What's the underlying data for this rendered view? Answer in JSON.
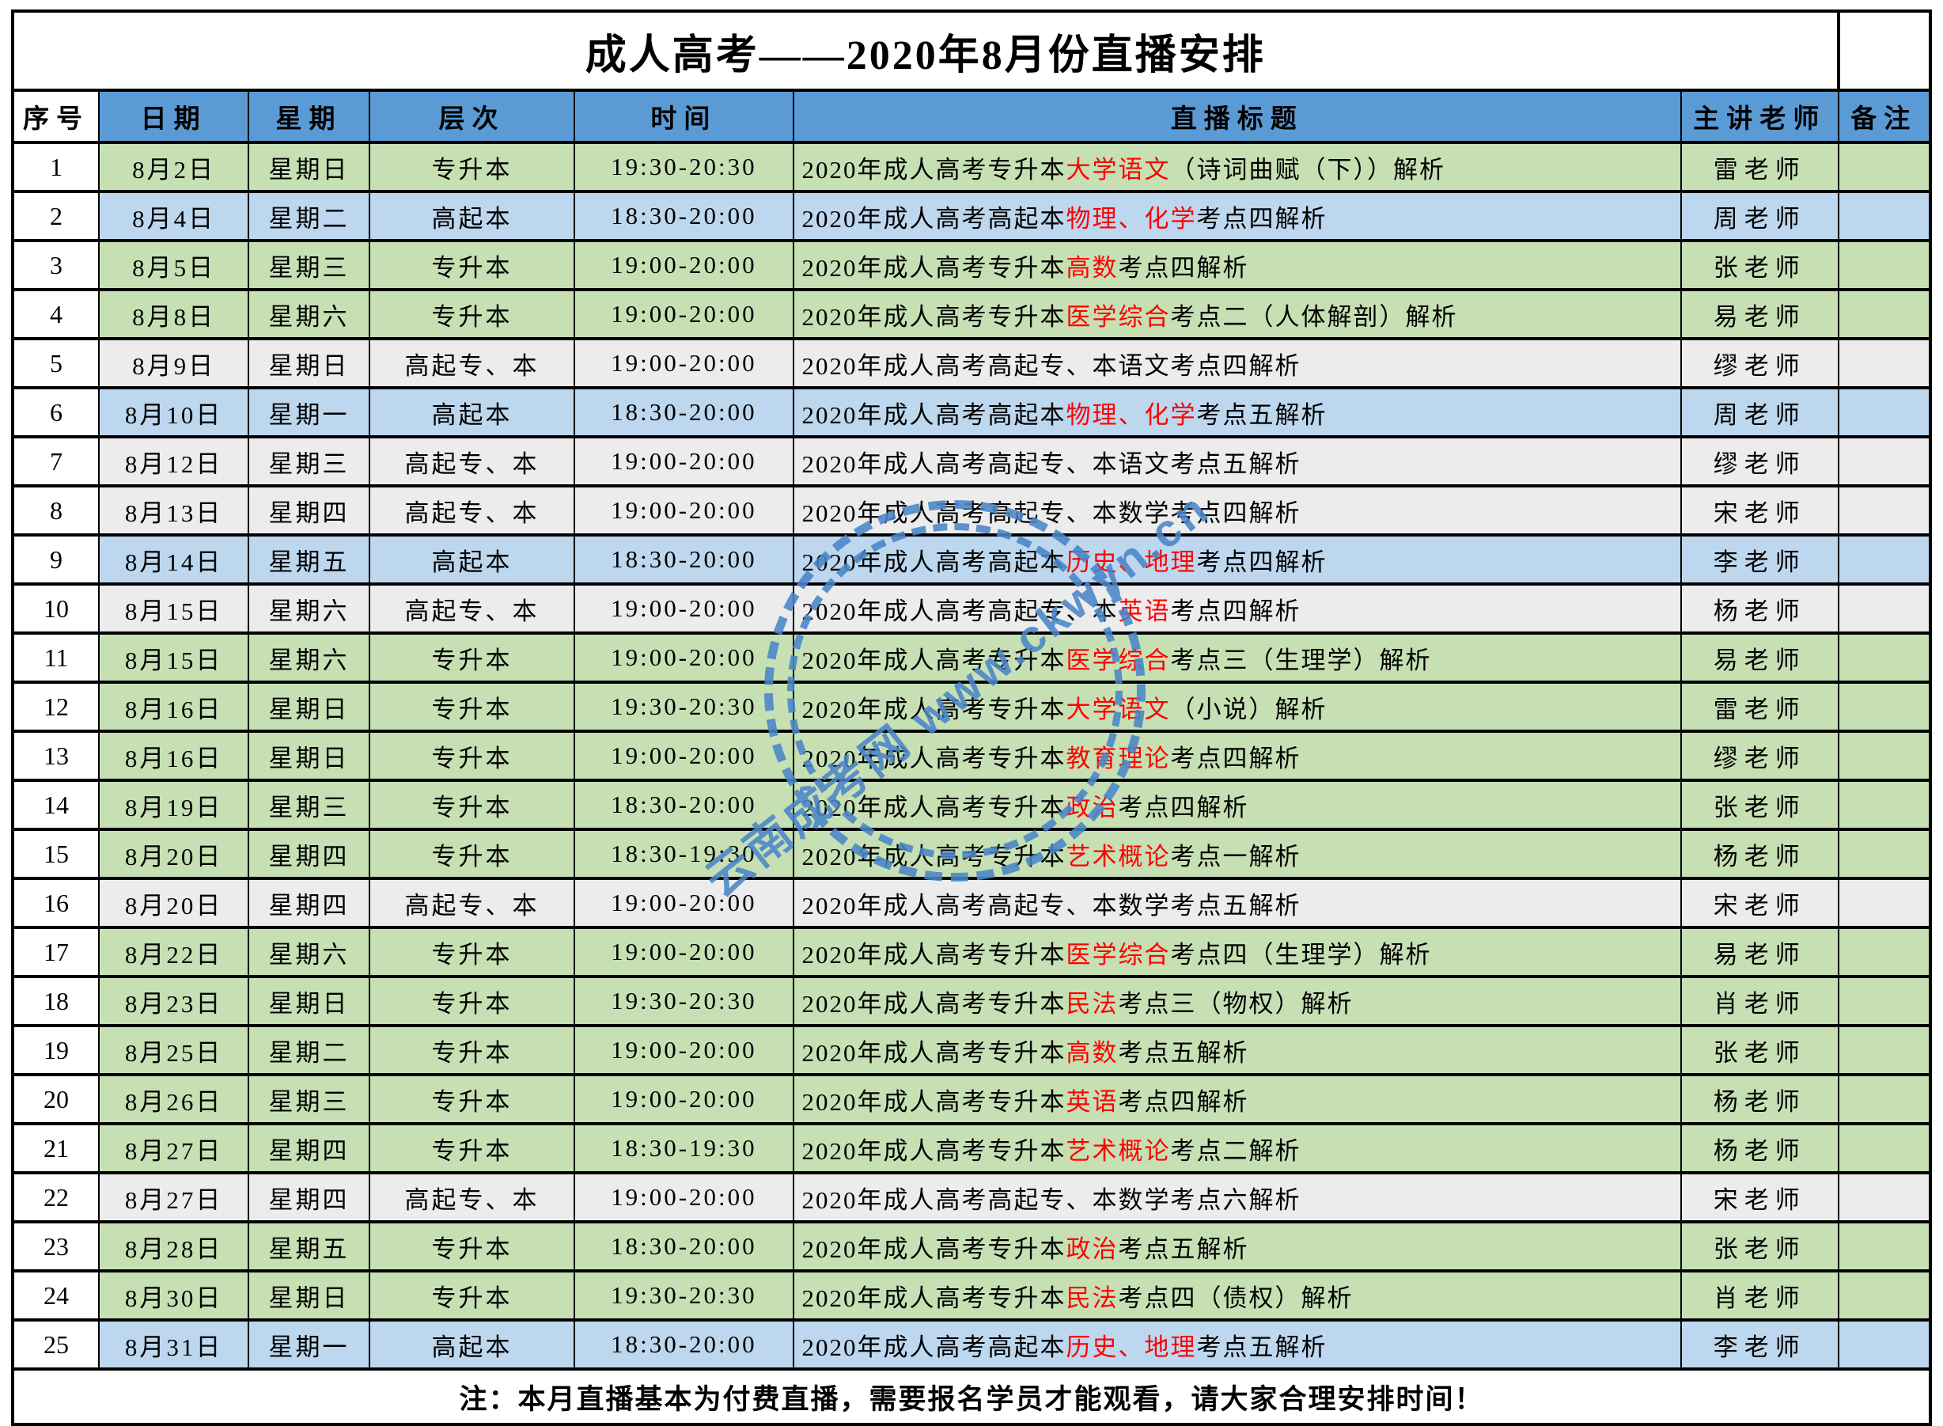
{
  "title": "成人高考——2020年8月份直播安排",
  "columns": [
    "序号",
    "日期",
    "星期",
    "层次",
    "时间",
    "直播标题",
    "主讲老师",
    "备注"
  ],
  "footer_note": "注：本月直播基本为付费直播，需要报名学员才能观看，请大家合理安排时间！",
  "watermark": {
    "text": "云南成考网 www.ckwyn.cn",
    "color": "#4a86c8"
  },
  "colors": {
    "header_bg": "#5b9bd5",
    "row_green": "#c6e0b4",
    "row_blue": "#bdd7ee",
    "row_gray": "#ececec",
    "highlight_red": "#ff0000",
    "border": "#000000"
  },
  "rows": [
    {
      "no": "1",
      "date": "8月2日",
      "weekday": "星期日",
      "level": "专升本",
      "time": "19:30-20:30",
      "bg": "green",
      "teacher": "雷老师",
      "remark": "",
      "title_parts": [
        {
          "text": "2020年成人高考专升本",
          "red": false
        },
        {
          "text": "大学语文",
          "red": true
        },
        {
          "text": "（诗词曲赋（下））解析",
          "red": false
        }
      ]
    },
    {
      "no": "2",
      "date": "8月4日",
      "weekday": "星期二",
      "level": "高起本",
      "time": "18:30-20:00",
      "bg": "blue",
      "teacher": "周老师",
      "remark": "",
      "title_parts": [
        {
          "text": "2020年成人高考高起本",
          "red": false
        },
        {
          "text": "物理、化学",
          "red": true
        },
        {
          "text": "考点四解析",
          "red": false
        }
      ]
    },
    {
      "no": "3",
      "date": "8月5日",
      "weekday": "星期三",
      "level": "专升本",
      "time": "19:00-20:00",
      "bg": "green",
      "teacher": "张老师",
      "remark": "",
      "title_parts": [
        {
          "text": "2020年成人高考专升本",
          "red": false
        },
        {
          "text": "高数",
          "red": true
        },
        {
          "text": "考点四解析",
          "red": false
        }
      ]
    },
    {
      "no": "4",
      "date": "8月8日",
      "weekday": "星期六",
      "level": "专升本",
      "time": "19:00-20:00",
      "bg": "green",
      "teacher": "易老师",
      "remark": "",
      "title_parts": [
        {
          "text": "2020年成人高考专升本",
          "red": false
        },
        {
          "text": "医学综合",
          "red": true
        },
        {
          "text": "考点二（人体解剖）解析",
          "red": false
        }
      ]
    },
    {
      "no": "5",
      "date": "8月9日",
      "weekday": "星期日",
      "level": "高起专、本",
      "time": "19:00-20:00",
      "bg": "gray",
      "teacher": "缪老师",
      "remark": "",
      "title_parts": [
        {
          "text": "2020年成人高考高起专、本语文考点四解析",
          "red": false
        }
      ]
    },
    {
      "no": "6",
      "date": "8月10日",
      "weekday": "星期一",
      "level": "高起本",
      "time": "18:30-20:00",
      "bg": "blue",
      "teacher": "周老师",
      "remark": "",
      "title_parts": [
        {
          "text": "2020年成人高考高起本",
          "red": false
        },
        {
          "text": "物理、化学",
          "red": true
        },
        {
          "text": "考点五解析",
          "red": false
        }
      ]
    },
    {
      "no": "7",
      "date": "8月12日",
      "weekday": "星期三",
      "level": "高起专、本",
      "time": "19:00-20:00",
      "bg": "gray",
      "teacher": "缪老师",
      "remark": "",
      "title_parts": [
        {
          "text": "2020年成人高考高起专、本语文考点五解析",
          "red": false
        }
      ]
    },
    {
      "no": "8",
      "date": "8月13日",
      "weekday": "星期四",
      "level": "高起专、本",
      "time": "19:00-20:00",
      "bg": "gray",
      "teacher": "宋老师",
      "remark": "",
      "title_parts": [
        {
          "text": "2020年成人高考高起专、本数学考点四解析",
          "red": false
        }
      ]
    },
    {
      "no": "9",
      "date": "8月14日",
      "weekday": "星期五",
      "level": "高起本",
      "time": "18:30-20:00",
      "bg": "blue",
      "teacher": "李老师",
      "remark": "",
      "title_parts": [
        {
          "text": "2020年成人高考高起本",
          "red": false
        },
        {
          "text": "历史、地理",
          "red": true
        },
        {
          "text": "考点四解析",
          "red": false
        }
      ]
    },
    {
      "no": "10",
      "date": "8月15日",
      "weekday": "星期六",
      "level": "高起专、本",
      "time": "19:00-20:00",
      "bg": "gray",
      "teacher": "杨老师",
      "remark": "",
      "title_parts": [
        {
          "text": "2020年成人高考高起专、本",
          "red": false
        },
        {
          "text": "英语",
          "red": true
        },
        {
          "text": "考点四解析",
          "red": false
        }
      ]
    },
    {
      "no": "11",
      "date": "8月15日",
      "weekday": "星期六",
      "level": "专升本",
      "time": "19:00-20:00",
      "bg": "green",
      "teacher": "易老师",
      "remark": "",
      "title_parts": [
        {
          "text": "2020年成人高考专升本",
          "red": false
        },
        {
          "text": "医学综合",
          "red": true
        },
        {
          "text": "考点三（生理学）解析",
          "red": false
        }
      ]
    },
    {
      "no": "12",
      "date": "8月16日",
      "weekday": "星期日",
      "level": "专升本",
      "time": "19:30-20:30",
      "bg": "green",
      "teacher": "雷老师",
      "remark": "",
      "title_parts": [
        {
          "text": "2020年成人高考专升本",
          "red": false
        },
        {
          "text": "大学语文",
          "red": true
        },
        {
          "text": "（小说）解析",
          "red": false
        }
      ]
    },
    {
      "no": "13",
      "date": "8月16日",
      "weekday": "星期日",
      "level": "专升本",
      "time": "19:00-20:00",
      "bg": "green",
      "teacher": "缪老师",
      "remark": "",
      "title_parts": [
        {
          "text": "2020年成人高考专升本",
          "red": false
        },
        {
          "text": "教育理论",
          "red": true
        },
        {
          "text": "考点四解析",
          "red": false
        }
      ]
    },
    {
      "no": "14",
      "date": "8月19日",
      "weekday": "星期三",
      "level": "专升本",
      "time": "18:30-20:00",
      "bg": "green",
      "teacher": "张老师",
      "remark": "",
      "title_parts": [
        {
          "text": "2020年成人高考专升本",
          "red": false
        },
        {
          "text": "政治",
          "red": true
        },
        {
          "text": "考点四解析",
          "red": false
        }
      ]
    },
    {
      "no": "15",
      "date": "8月20日",
      "weekday": "星期四",
      "level": "专升本",
      "time": "18:30-19:30",
      "bg": "green",
      "teacher": "杨老师",
      "remark": "",
      "title_parts": [
        {
          "text": "2020年成人高考专升本",
          "red": false
        },
        {
          "text": "艺术概论",
          "red": true
        },
        {
          "text": "考点一解析",
          "red": false
        }
      ]
    },
    {
      "no": "16",
      "date": "8月20日",
      "weekday": "星期四",
      "level": "高起专、本",
      "time": "19:00-20:00",
      "bg": "gray",
      "teacher": "宋老师",
      "remark": "",
      "title_parts": [
        {
          "text": "2020年成人高考高起专、本数学考点五解析",
          "red": false
        }
      ]
    },
    {
      "no": "17",
      "date": "8月22日",
      "weekday": "星期六",
      "level": "专升本",
      "time": "19:00-20:00",
      "bg": "green",
      "teacher": "易老师",
      "remark": "",
      "title_parts": [
        {
          "text": "2020年成人高考专升本",
          "red": false
        },
        {
          "text": "医学综合",
          "red": true
        },
        {
          "text": "考点四（生理学）解析",
          "red": false
        }
      ]
    },
    {
      "no": "18",
      "date": "8月23日",
      "weekday": "星期日",
      "level": "专升本",
      "time": "19:30-20:30",
      "bg": "green",
      "teacher": "肖老师",
      "remark": "",
      "title_parts": [
        {
          "text": "2020年成人高考专升本",
          "red": false
        },
        {
          "text": "民法",
          "red": true
        },
        {
          "text": "考点三（物权）解析",
          "red": false
        }
      ]
    },
    {
      "no": "19",
      "date": "8月25日",
      "weekday": "星期二",
      "level": "专升本",
      "time": "19:00-20:00",
      "bg": "green",
      "teacher": "张老师",
      "remark": "",
      "title_parts": [
        {
          "text": "2020年成人高考专升本",
          "red": false
        },
        {
          "text": "高数",
          "red": true
        },
        {
          "text": "考点五解析",
          "red": false
        }
      ]
    },
    {
      "no": "20",
      "date": "8月26日",
      "weekday": "星期三",
      "level": "专升本",
      "time": "19:00-20:00",
      "bg": "green",
      "teacher": "杨老师",
      "remark": "",
      "title_parts": [
        {
          "text": "2020年成人高考专升本",
          "red": false
        },
        {
          "text": "英语",
          "red": true
        },
        {
          "text": "考点四解析",
          "red": false
        }
      ]
    },
    {
      "no": "21",
      "date": "8月27日",
      "weekday": "星期四",
      "level": "专升本",
      "time": "18:30-19:30",
      "bg": "green",
      "teacher": "杨老师",
      "remark": "",
      "title_parts": [
        {
          "text": "2020年成人高考专升本",
          "red": false
        },
        {
          "text": "艺术概论",
          "red": true
        },
        {
          "text": "考点二解析",
          "red": false
        }
      ]
    },
    {
      "no": "22",
      "date": "8月27日",
      "weekday": "星期四",
      "level": "高起专、本",
      "time": "19:00-20:00",
      "bg": "gray",
      "teacher": "宋老师",
      "remark": "",
      "title_parts": [
        {
          "text": "2020年成人高考高起专、本数学考点六解析",
          "red": false
        }
      ]
    },
    {
      "no": "23",
      "date": "8月28日",
      "weekday": "星期五",
      "level": "专升本",
      "time": "18:30-20:00",
      "bg": "green",
      "teacher": "张老师",
      "remark": "",
      "title_parts": [
        {
          "text": "2020年成人高考专升本",
          "red": false
        },
        {
          "text": "政治",
          "red": true
        },
        {
          "text": "考点五解析",
          "red": false
        }
      ]
    },
    {
      "no": "24",
      "date": "8月30日",
      "weekday": "星期日",
      "level": "专升本",
      "time": "19:30-20:30",
      "bg": "green",
      "teacher": "肖老师",
      "remark": "",
      "title_parts": [
        {
          "text": "2020年成人高考专升本",
          "red": false
        },
        {
          "text": "民法",
          "red": true
        },
        {
          "text": "考点四（债权）解析",
          "red": false
        }
      ]
    },
    {
      "no": "25",
      "date": "8月31日",
      "weekday": "星期一",
      "level": "高起本",
      "time": "18:30-20:00",
      "bg": "blue",
      "teacher": "李老师",
      "remark": "",
      "title_parts": [
        {
          "text": "2020年成人高考高起本",
          "red": false
        },
        {
          "text": "历史、地理",
          "red": true
        },
        {
          "text": "考点五解析",
          "red": false
        }
      ]
    }
  ]
}
